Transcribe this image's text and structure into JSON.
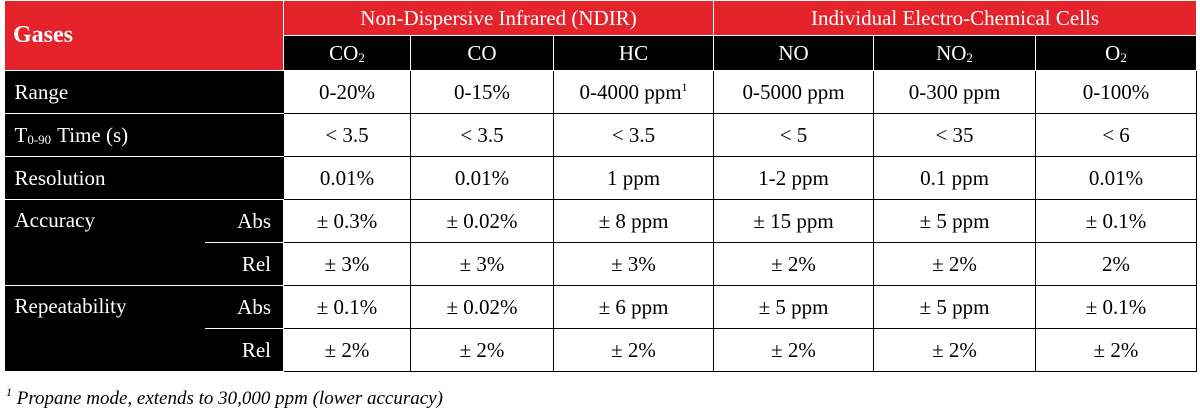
{
  "table": {
    "header": {
      "title": "Gases",
      "groups": [
        "Non-Dispersive Infrared (NDIR)",
        "Individual Electro-Chemical Cells"
      ],
      "columns": [
        {
          "text": "CO",
          "sub": "2"
        },
        "CO",
        "HC",
        "NO",
        {
          "text": "NO",
          "sub": "2"
        },
        {
          "text": "O",
          "sub": "2"
        }
      ]
    },
    "rows": [
      {
        "label": "Range",
        "values": [
          "0-20%",
          "0-15%",
          {
            "text": "0-4000 ppm",
            "sup": "1"
          },
          "0-5000 ppm",
          "0-300 ppm",
          "0-100%"
        ]
      },
      {
        "label": {
          "text": "T",
          "sub": "0-90",
          "rest": "Time (s)"
        },
        "values": [
          "< 3.5",
          "< 3.5",
          "< 3.5",
          "< 5",
          "< 35",
          "< 6"
        ]
      },
      {
        "label": "Resolution",
        "values": [
          "0.01%",
          "0.01%",
          "1 ppm",
          "1-2 ppm",
          "0.1 ppm",
          "0.01%"
        ]
      },
      {
        "label": "Accuracy",
        "sub_rows": [
          {
            "label": "Abs",
            "values": [
              "± 0.3%",
              "± 0.02%",
              "± 8 ppm",
              "± 15 ppm",
              "± 5 ppm",
              "± 0.1%"
            ]
          },
          {
            "label": "Rel",
            "values": [
              "± 3%",
              "± 3%",
              "± 3%",
              "± 2%",
              "± 2%",
              "2%"
            ]
          }
        ]
      },
      {
        "label": "Repeatability",
        "sub_rows": [
          {
            "label": "Abs",
            "values": [
              "± 0.1%",
              "± 0.02%",
              "± 6 ppm",
              "± 5 ppm",
              "± 5 ppm",
              "± 0.1%"
            ]
          },
          {
            "label": "Rel",
            "values": [
              "± 2%",
              "± 2%",
              "± 2%",
              "± 2%",
              "± 2%",
              "± 2%"
            ]
          }
        ]
      }
    ]
  },
  "footnote": {
    "marker": "1",
    "text": "Propane mode, extends to 30,000 ppm (lower accuracy)"
  }
}
